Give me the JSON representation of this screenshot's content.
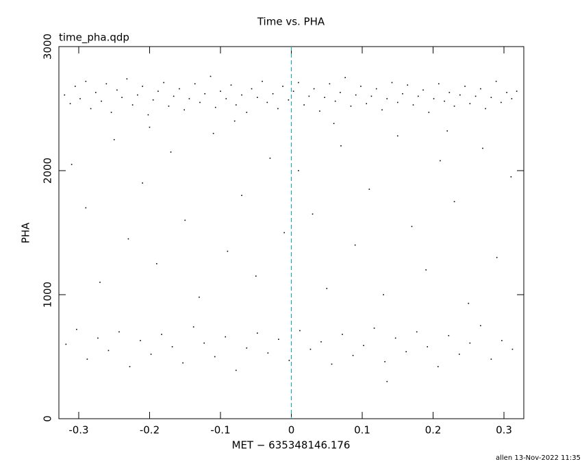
{
  "chart_data": {
    "type": "scatter",
    "title": "Time vs. PHA",
    "subtitle": "time_pha.qdp",
    "x_label": "MET − 635348146.176",
    "y_label": "PHA",
    "footer": "allen 13-Nov-2022 11:35",
    "color": "#000000",
    "xlim": [
      -0.328,
      0.328
    ],
    "ylim": [
      0,
      3000
    ],
    "xticks": [
      -0.3,
      -0.2,
      -0.1,
      0,
      0.1,
      0.2,
      0.3
    ],
    "yticks": [
      0,
      1000,
      2000,
      3000
    ],
    "vline": {
      "x": 0,
      "color": "#2a9fb0"
    },
    "x": [
      -0.32,
      -0.312,
      -0.305,
      -0.298,
      -0.29,
      -0.283,
      -0.276,
      -0.268,
      -0.261,
      -0.254,
      -0.246,
      -0.239,
      -0.232,
      -0.224,
      -0.217,
      -0.21,
      -0.202,
      -0.195,
      -0.188,
      -0.18,
      -0.173,
      -0.166,
      -0.158,
      -0.151,
      -0.144,
      -0.136,
      -0.129,
      -0.122,
      -0.114,
      -0.107,
      -0.1,
      -0.092,
      -0.085,
      -0.078,
      -0.07,
      -0.063,
      -0.056,
      -0.048,
      -0.041,
      -0.034,
      -0.026,
      -0.019,
      -0.012,
      -0.004,
      0.003,
      0.01,
      0.018,
      0.025,
      0.032,
      0.04,
      0.047,
      0.054,
      0.062,
      0.069,
      0.076,
      0.084,
      0.091,
      0.098,
      0.106,
      0.113,
      0.12,
      0.128,
      0.135,
      0.142,
      0.15,
      0.157,
      0.164,
      0.172,
      0.179,
      0.186,
      0.194,
      0.201,
      0.208,
      0.216,
      0.223,
      0.23,
      0.238,
      0.245,
      0.252,
      0.26,
      0.267,
      0.274,
      0.282,
      0.289,
      0.296,
      0.304,
      0.311,
      0.318,
      -0.31,
      -0.29,
      -0.27,
      -0.25,
      -0.23,
      -0.21,
      -0.19,
      -0.17,
      -0.15,
      -0.13,
      -0.11,
      -0.09,
      -0.07,
      -0.05,
      -0.03,
      -0.01,
      0.01,
      0.03,
      0.05,
      0.07,
      0.09,
      0.11,
      0.13,
      0.15,
      0.17,
      0.19,
      0.21,
      0.23,
      0.25,
      0.27,
      0.29,
      0.31,
      -0.2,
      0.06,
      0.22,
      -0.08,
      -0.318,
      -0.303,
      -0.288,
      -0.273,
      -0.258,
      -0.243,
      -0.228,
      -0.213,
      -0.198,
      -0.183,
      -0.168,
      -0.153,
      -0.138,
      -0.123,
      -0.108,
      -0.093,
      -0.078,
      -0.063,
      -0.048,
      -0.033,
      -0.018,
      -0.003,
      0.012,
      0.027,
      0.042,
      0.057,
      0.072,
      0.087,
      0.102,
      0.117,
      0.132,
      0.147,
      0.162,
      0.177,
      0.192,
      0.207,
      0.222,
      0.237,
      0.252,
      0.267,
      0.282,
      0.297,
      0.312,
      0.135
    ],
    "values": [
      2610,
      2540,
      2680,
      2580,
      2720,
      2500,
      2630,
      2560,
      2700,
      2470,
      2650,
      2590,
      2740,
      2530,
      2610,
      2680,
      2450,
      2570,
      2640,
      2710,
      2520,
      2600,
      2660,
      2490,
      2580,
      2700,
      2550,
      2620,
      2760,
      2510,
      2640,
      2580,
      2690,
      2530,
      2610,
      2470,
      2660,
      2590,
      2720,
      2550,
      2620,
      2500,
      2680,
      2570,
      2640,
      2710,
      2530,
      2600,
      2660,
      2480,
      2590,
      2700,
      2560,
      2630,
      2750,
      2520,
      2610,
      2680,
      2540,
      2600,
      2660,
      2490,
      2580,
      2710,
      2550,
      2620,
      2690,
      2530,
      2600,
      2650,
      2470,
      2580,
      2700,
      2560,
      2630,
      2520,
      2610,
      2680,
      2540,
      2600,
      2660,
      2500,
      2590,
      2720,
      2550,
      2630,
      2580,
      2640,
      2050,
      1700,
      1100,
      2250,
      1450,
      1900,
      1250,
      2150,
      1600,
      980,
      2300,
      1350,
      1800,
      1150,
      2100,
      1500,
      2000,
      1650,
      1050,
      2200,
      1400,
      1850,
      1000,
      2280,
      1550,
      1200,
      2080,
      1750,
      930,
      2180,
      1300,
      1950,
      2350,
      2380,
      2320,
      2400,
      600,
      720,
      480,
      650,
      550,
      700,
      420,
      630,
      520,
      680,
      580,
      450,
      740,
      610,
      500,
      660,
      390,
      570,
      690,
      530,
      640,
      470,
      710,
      560,
      620,
      440,
      680,
      510,
      590,
      730,
      460,
      650,
      540,
      700,
      580,
      420,
      670,
      520,
      610,
      750,
      480,
      630,
      560,
      300
    ]
  }
}
